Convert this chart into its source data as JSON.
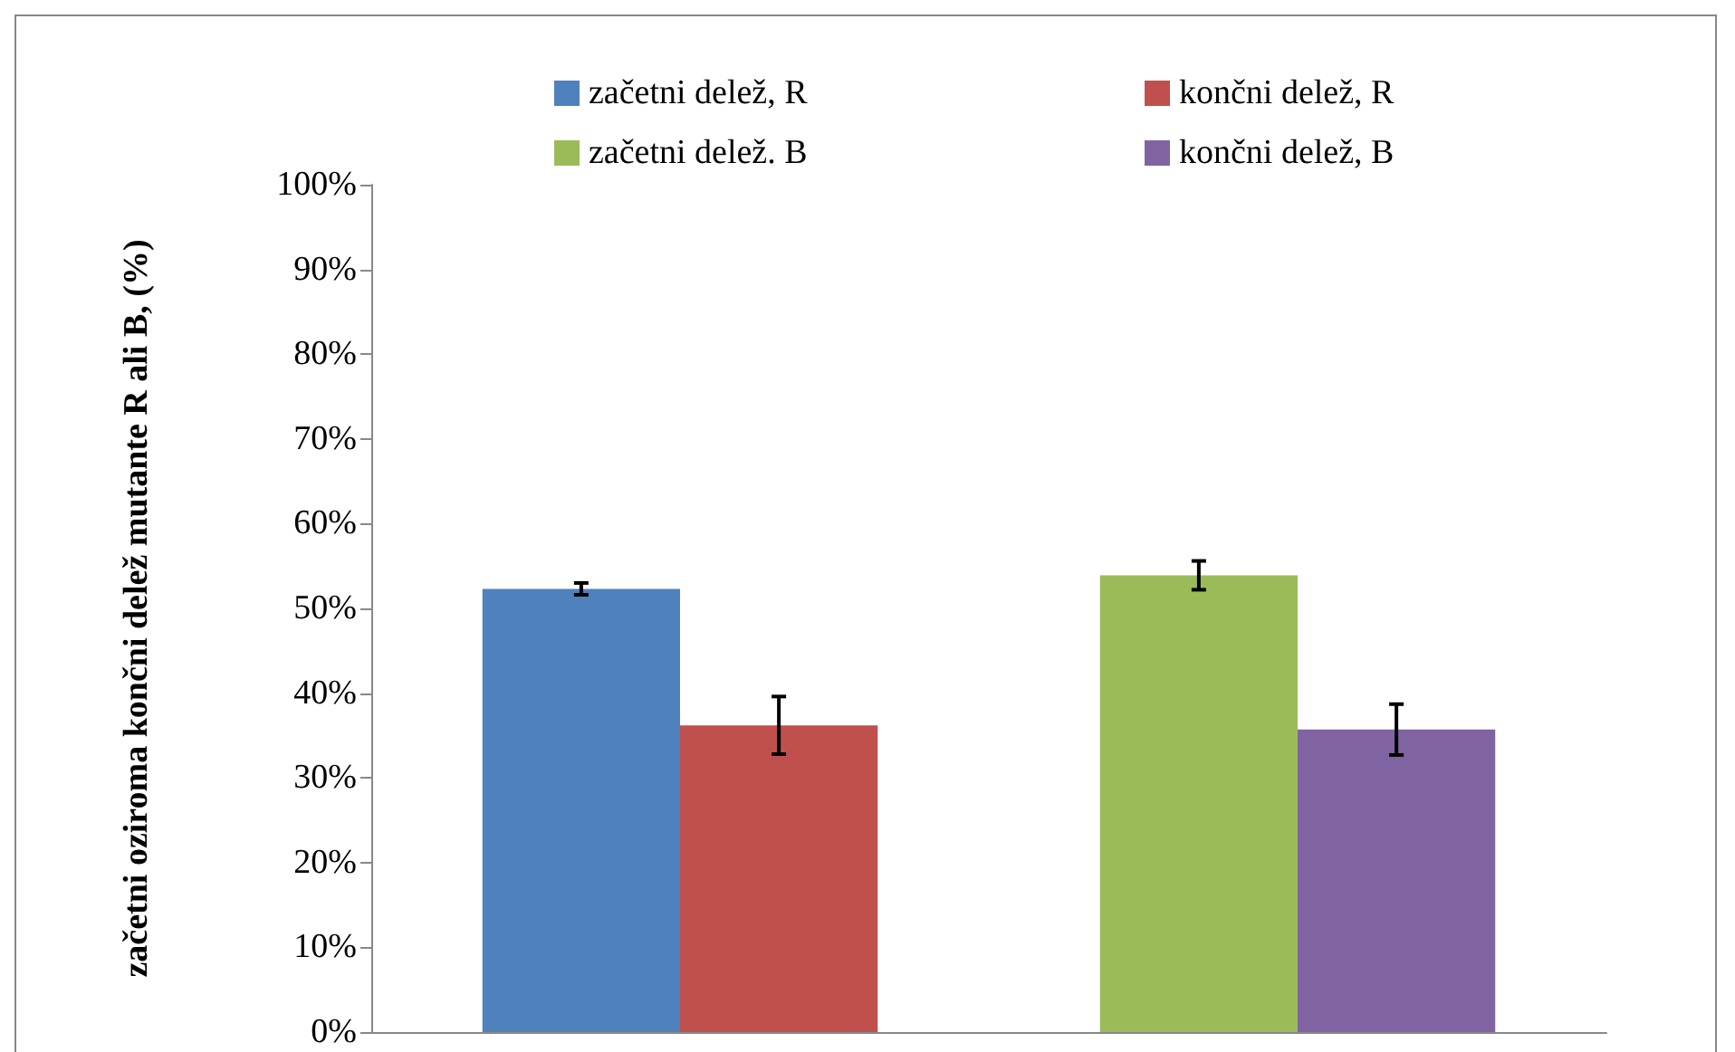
{
  "chart_data": {
    "type": "bar",
    "ylabel": "začetni oziroma končni delež mutante R ali B, (%)",
    "categories": [
      null,
      null
    ],
    "series": [
      {
        "name": "začetni delež, R",
        "color": "#4f81bd",
        "values": [
          52.3,
          null
        ],
        "errors": [
          0.7,
          null
        ]
      },
      {
        "name": "končni delež, R",
        "color": "#c0504d",
        "values": [
          36.2,
          null
        ],
        "errors": [
          3.4,
          null
        ]
      },
      {
        "name": "začetni delež. B",
        "color": "#9bbb59",
        "values": [
          null,
          53.9
        ],
        "errors": [
          null,
          1.7
        ]
      },
      {
        "name": "končni delež, B",
        "color": "#8064a2",
        "values": [
          null,
          35.7
        ],
        "errors": [
          null,
          3.0
        ]
      }
    ],
    "ylim": [
      0,
      100
    ],
    "yticks": [
      {
        "value": 0,
        "label": "0%"
      },
      {
        "value": 10,
        "label": "10%"
      },
      {
        "value": 20,
        "label": "20%"
      },
      {
        "value": 30,
        "label": "30%"
      },
      {
        "value": 40,
        "label": "40%"
      },
      {
        "value": 50,
        "label": "50%"
      },
      {
        "value": 60,
        "label": "60%"
      },
      {
        "value": 70,
        "label": "70%"
      },
      {
        "value": 80,
        "label": "80%"
      },
      {
        "value": 90,
        "label": "90%"
      },
      {
        "value": 100,
        "label": "100%"
      }
    ],
    "grid": false,
    "legend": "top"
  }
}
